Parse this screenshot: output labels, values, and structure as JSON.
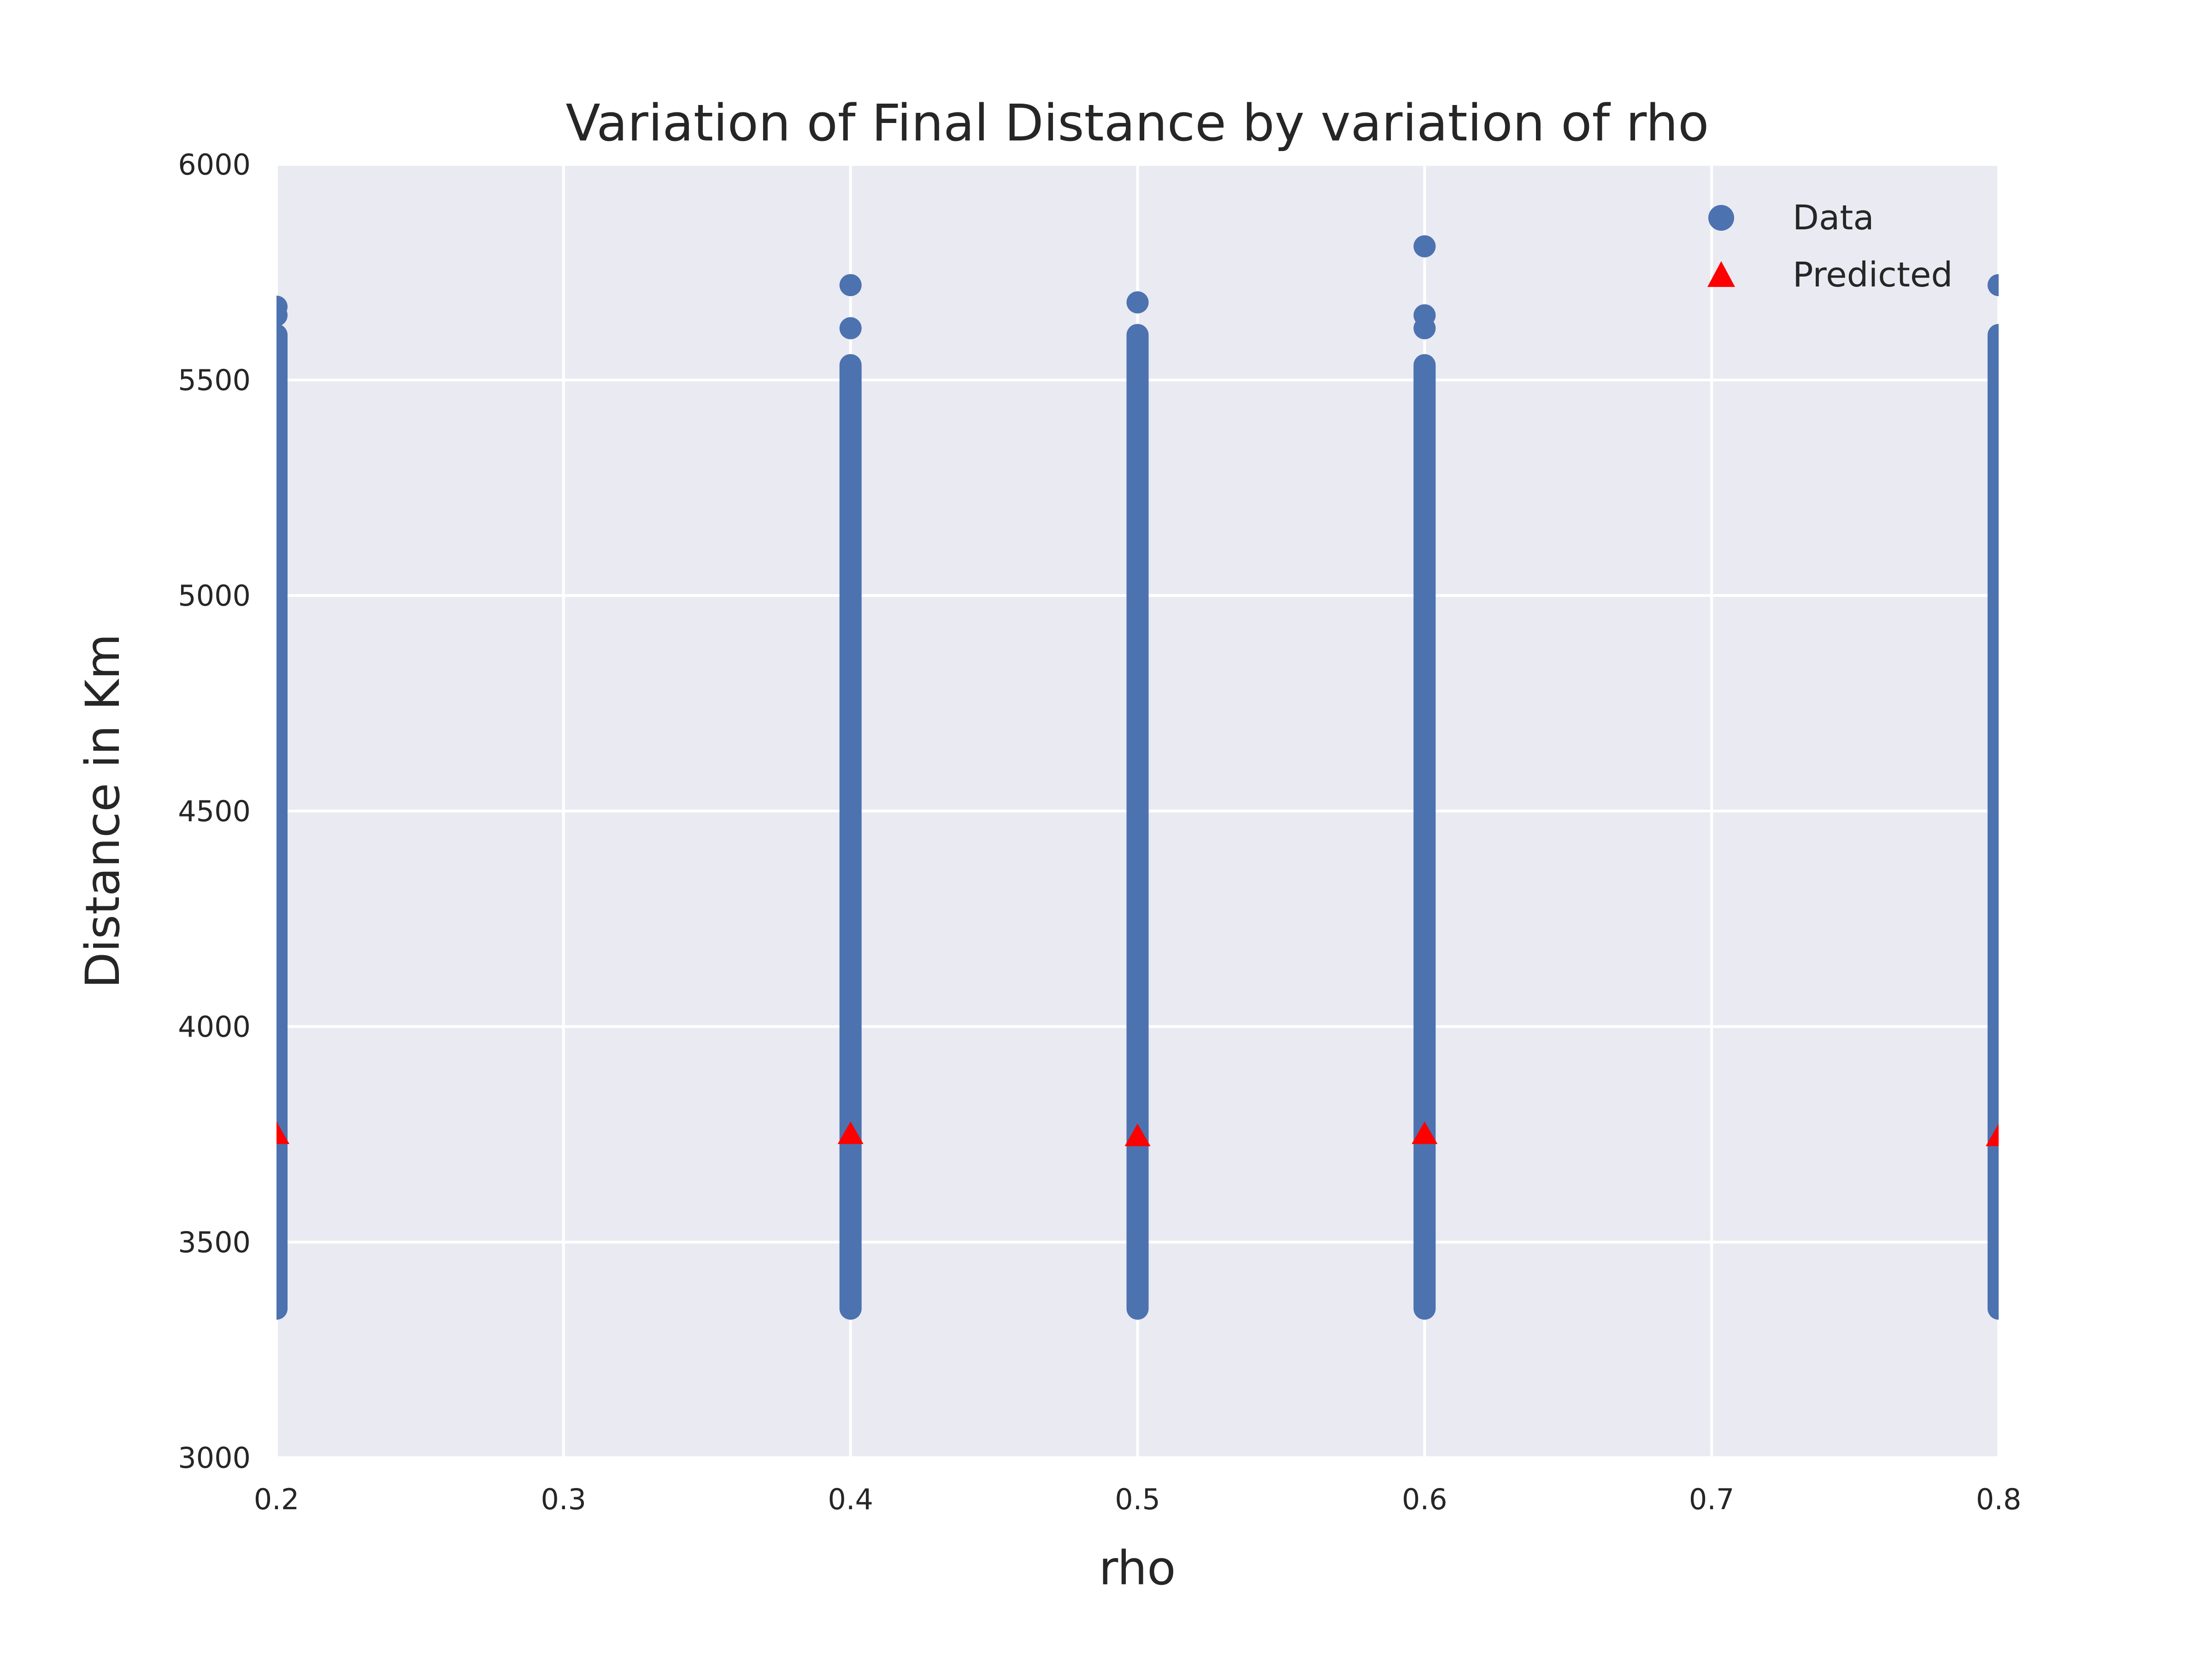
{
  "chart_data": {
    "type": "scatter",
    "title": "Variation of Final Distance by variation of rho",
    "xlabel": "rho",
    "ylabel": "Distance in Km",
    "xlim": [
      0.2,
      0.8
    ],
    "ylim": [
      3000,
      6000
    ],
    "xticks": [
      "0.2",
      "0.3",
      "0.4",
      "0.5",
      "0.6",
      "0.7",
      "0.8"
    ],
    "xtick_values": [
      0.2,
      0.3,
      0.4,
      0.5,
      0.6,
      0.7,
      0.8
    ],
    "yticks": [
      "3000",
      "3500",
      "4000",
      "4500",
      "5000",
      "5500",
      "6000"
    ],
    "ytick_values": [
      3000,
      3500,
      4000,
      4500,
      5000,
      5500,
      6000
    ],
    "grid": true,
    "legend_position": "top-right",
    "colors": {
      "background": "#eaeaf2",
      "grid": "#ffffff",
      "data": "#4c72b0",
      "predicted": "#ff0000"
    },
    "series": [
      {
        "name": "Data",
        "marker": "circle",
        "groups": [
          {
            "x": 0.2,
            "y_min": 3320,
            "y_max": 5630,
            "outliers": [
              5670,
              5650
            ]
          },
          {
            "x": 0.4,
            "y_min": 3320,
            "y_max": 5560,
            "outliers": [
              5620,
              5720
            ]
          },
          {
            "x": 0.5,
            "y_min": 3320,
            "y_max": 5630,
            "outliers": [
              5680
            ]
          },
          {
            "x": 0.6,
            "y_min": 3320,
            "y_max": 5560,
            "outliers": [
              5620,
              5650,
              5810
            ]
          },
          {
            "x": 0.8,
            "y_min": 3320,
            "y_max": 5630,
            "outliers": [
              5720
            ]
          }
        ]
      },
      {
        "name": "Predicted",
        "marker": "triangle",
        "x": [
          0.2,
          0.4,
          0.5,
          0.6,
          0.8
        ],
        "y": [
          3750,
          3750,
          3745,
          3750,
          3745
        ]
      }
    ]
  }
}
